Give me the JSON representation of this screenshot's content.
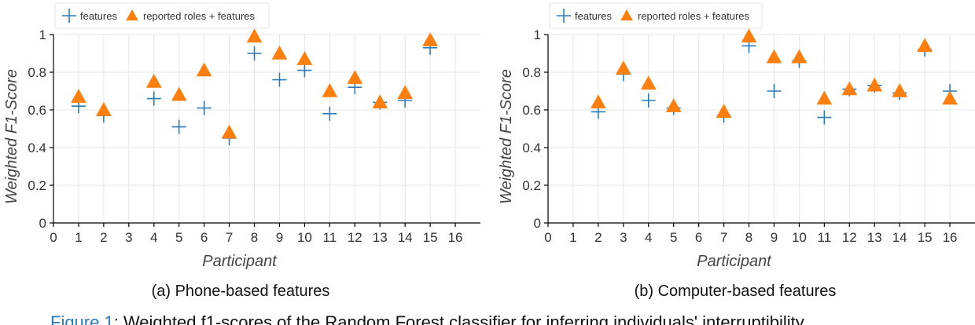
{
  "figure_caption": {
    "label": "Figure 1",
    "text": ": Weighted f1-scores of the Random Forest classifier for inferring individuals' interruptibility"
  },
  "colors": {
    "features": "#2b7bba",
    "reported": "#ff7f0e"
  },
  "chart_data": [
    {
      "type": "scatter",
      "caption": "(a)  Phone-based features",
      "xlabel": "Participant",
      "ylabel": "Weighted F1-Score",
      "xlim": [
        0,
        17
      ],
      "ylim": [
        0,
        1
      ],
      "xticks": [
        "0",
        "1",
        "2",
        "3",
        "4",
        "5",
        "6",
        "7",
        "8",
        "9",
        "10",
        "11",
        "12",
        "13",
        "14",
        "15",
        "16"
      ],
      "yticks": [
        "0",
        "0.2",
        "0.4",
        "0.6",
        "0.8",
        "1"
      ],
      "legend_position": "top-left",
      "series": [
        {
          "name": "features",
          "marker": "plus",
          "x": [
            1,
            2,
            4,
            5,
            6,
            7,
            8,
            9,
            10,
            11,
            12,
            13,
            14,
            15
          ],
          "y": [
            0.62,
            0.57,
            0.66,
            0.51,
            0.61,
            0.45,
            0.9,
            0.76,
            0.81,
            0.58,
            0.72,
            0.64,
            0.65,
            0.93
          ]
        },
        {
          "name": "reported roles + features",
          "marker": "triangle",
          "x": [
            1,
            2,
            4,
            5,
            6,
            7,
            8,
            9,
            10,
            11,
            12,
            13,
            14,
            15
          ],
          "y": [
            0.67,
            0.6,
            0.75,
            0.68,
            0.81,
            0.48,
            0.99,
            0.9,
            0.87,
            0.7,
            0.77,
            0.64,
            0.69,
            0.97
          ]
        }
      ]
    },
    {
      "type": "scatter",
      "caption": "(b)  Computer-based features",
      "xlabel": "Participant",
      "ylabel": "Weighted F1-Score",
      "xlim": [
        0,
        17
      ],
      "ylim": [
        0,
        1
      ],
      "xticks": [
        "0",
        "1",
        "2",
        "3",
        "4",
        "5",
        "6",
        "7",
        "8",
        "9",
        "10",
        "11",
        "12",
        "13",
        "14",
        "15",
        "16"
      ],
      "yticks": [
        "0",
        "0.2",
        "0.4",
        "0.6",
        "0.8",
        "1"
      ],
      "legend_position": "top-left",
      "series": [
        {
          "name": "features",
          "marker": "plus",
          "x": [
            2,
            3,
            4,
            5,
            7,
            8,
            9,
            10,
            11,
            12,
            13,
            14,
            15,
            16
          ],
          "y": [
            0.59,
            0.79,
            0.65,
            0.61,
            0.57,
            0.94,
            0.7,
            0.86,
            0.56,
            0.71,
            0.73,
            0.69,
            0.92,
            0.7
          ]
        },
        {
          "name": "reported roles + features",
          "marker": "triangle",
          "x": [
            2,
            3,
            4,
            5,
            7,
            8,
            9,
            10,
            11,
            12,
            13,
            14,
            15,
            16
          ],
          "y": [
            0.64,
            0.82,
            0.74,
            0.62,
            0.59,
            0.99,
            0.88,
            0.88,
            0.66,
            0.71,
            0.73,
            0.7,
            0.94,
            0.66
          ]
        }
      ]
    }
  ]
}
